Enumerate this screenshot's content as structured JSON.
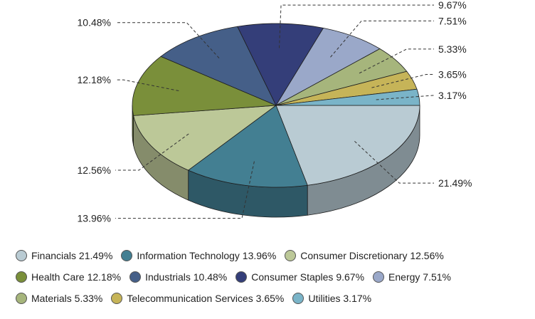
{
  "chart_data": {
    "type": "pie",
    "style": "3d",
    "start_angle_deg": 0,
    "direction": "clockwise",
    "slices": [
      {
        "label": "Financials",
        "value": 21.49,
        "value_label": "21.49%",
        "color": "#b9cbd3",
        "side": "#7f8c92"
      },
      {
        "label": "Information Technology",
        "value": 13.96,
        "value_label": "13.96%",
        "color": "#437f92",
        "side": "#2e5866"
      },
      {
        "label": "Consumer Discretionary",
        "value": 12.56,
        "value_label": "12.56%",
        "color": "#bcc898",
        "side": "#858c6b"
      },
      {
        "label": "Health Care",
        "value": 12.18,
        "value_label": "12.18%",
        "color": "#7a8f3a",
        "side": "#566428"
      },
      {
        "label": "Industrials",
        "value": 10.48,
        "value_label": "10.48%",
        "color": "#455f88",
        "side": "#30435f"
      },
      {
        "label": "Consumer Staples",
        "value": 9.67,
        "value_label": "9.67%",
        "color": "#343e79",
        "side": "#242b55"
      },
      {
        "label": "Energy",
        "value": 7.51,
        "value_label": "7.51%",
        "color": "#9aa8c9",
        "side": "#6c768d"
      },
      {
        "label": "Materials",
        "value": 5.33,
        "value_label": "5.33%",
        "color": "#a6b57c",
        "side": "#747f57"
      },
      {
        "label": "Telecommunication Services",
        "value": 3.65,
        "value_label": "3.65%",
        "color": "#c6b458",
        "side": "#8b7e3e"
      },
      {
        "label": "Utilities",
        "value": 3.17,
        "value_label": "3.17%",
        "color": "#7ab4c8",
        "side": "#567e8c"
      }
    ],
    "legend": {
      "placement": "bottom",
      "rows": [
        [
          {
            "label": "Financials",
            "value_label": "21.49%",
            "color": "#b9cbd3"
          },
          {
            "label": "Information Technology",
            "value_label": "13.96%",
            "color": "#437f92"
          },
          {
            "label": "Consumer Discretionary",
            "value_label": "12.56%",
            "color": "#bcc898"
          }
        ],
        [
          {
            "label": "Health Care",
            "value_label": "12.18%",
            "color": "#7a8f3a"
          },
          {
            "label": "Industrials",
            "value_label": "10.48%",
            "color": "#455f88"
          },
          {
            "label": "Consumer Staples",
            "value_label": "9.67%",
            "color": "#343e79"
          },
          {
            "label": "Energy",
            "value_label": "7.51%",
            "color": "#9aa8c9"
          }
        ],
        [
          {
            "label": "Materials",
            "value_label": "5.33%",
            "color": "#a6b57c"
          },
          {
            "label": "Telecommunication Services",
            "value_label": "3.65%",
            "color": "#c6b458"
          },
          {
            "label": "Utilities",
            "value_label": "3.17%",
            "color": "#7ab4c8"
          }
        ]
      ]
    }
  }
}
